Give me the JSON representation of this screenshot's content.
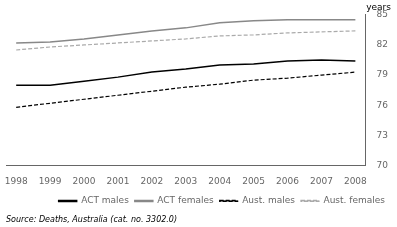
{
  "chart_data": {
    "type": "line",
    "x": [
      1998,
      1999,
      2000,
      2001,
      2002,
      2003,
      2004,
      2005,
      2006,
      2007,
      2008
    ],
    "series": [
      {
        "name": "ACT males",
        "color": "#000000",
        "line_style": "solid",
        "values": [
          78.0,
          78.0,
          78.4,
          78.8,
          79.3,
          79.6,
          80.0,
          80.1,
          80.4,
          80.5,
          80.4
        ]
      },
      {
        "name": "ACT females",
        "color": "#888888",
        "line_style": "solid",
        "values": [
          82.2,
          82.3,
          82.6,
          83.0,
          83.4,
          83.7,
          84.2,
          84.4,
          84.5,
          84.5,
          84.5
        ]
      },
      {
        "name": "Aust. males",
        "color": "#000000",
        "line_style": "dashed",
        "values": [
          75.8,
          76.2,
          76.6,
          77.0,
          77.4,
          77.8,
          78.1,
          78.5,
          78.7,
          79.0,
          79.3
        ]
      },
      {
        "name": "Aust. females",
        "color": "#aaaaaa",
        "line_style": "dashed",
        "values": [
          81.5,
          81.8,
          82.0,
          82.2,
          82.4,
          82.6,
          82.9,
          83.0,
          83.2,
          83.3,
          83.4
        ]
      }
    ],
    "xlim": [
      1997.7,
      2008.3
    ],
    "xticks": [
      1998,
      1999,
      2000,
      2001,
      2002,
      2003,
      2004,
      2005,
      2006,
      2007,
      2008
    ],
    "ylim": [
      70,
      85
    ],
    "yticks": [
      70,
      73,
      76,
      79,
      82,
      85
    ],
    "y_label": "years",
    "annotations": [
      "Source: Deaths, Australia (cat. no. 3302.0)"
    ],
    "legend": "lower right",
    "grid": false
  }
}
